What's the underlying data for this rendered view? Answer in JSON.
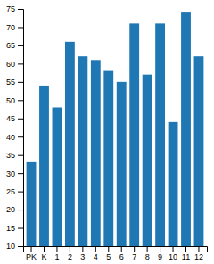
{
  "chart_data": {
    "type": "bar",
    "categories": [
      "PK",
      "K",
      "1",
      "2",
      "3",
      "4",
      "5",
      "6",
      "7",
      "8",
      "9",
      "10",
      "11",
      "12"
    ],
    "values": [
      33,
      54,
      48,
      66,
      62,
      61,
      58,
      55,
      71,
      57,
      71,
      44,
      74,
      62
    ],
    "ylim": [
      10,
      75
    ],
    "yticks": [
      10,
      15,
      20,
      25,
      30,
      35,
      40,
      45,
      50,
      55,
      60,
      65,
      70,
      75
    ],
    "grid": false
  }
}
